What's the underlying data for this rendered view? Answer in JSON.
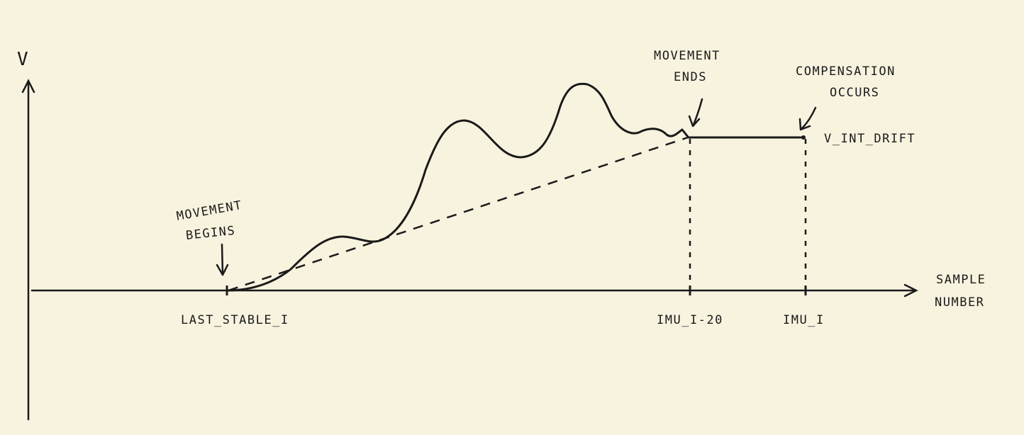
{
  "diagram": {
    "y_axis_label": "V",
    "x_axis_label_line1": "SAMPLE",
    "x_axis_label_line2": "NUMBER",
    "annotations": {
      "movement_begins_line1": "MOVEMENT",
      "movement_begins_line2": "BEGINS",
      "movement_ends_line1": "MOVEMENT",
      "movement_ends_line2": "ENDS",
      "compensation_line1": "COMPENSATION",
      "compensation_line2": "OCCURS"
    },
    "level_label": "V_INT_DRIFT",
    "x_ticks": {
      "last_stable": "LAST_STABLE_I",
      "imu_minus_20": "IMU_I-20",
      "imu_i": "IMU_I"
    }
  },
  "colors": {
    "paper": "#f8f3df",
    "ink": "#1a1a1a"
  }
}
